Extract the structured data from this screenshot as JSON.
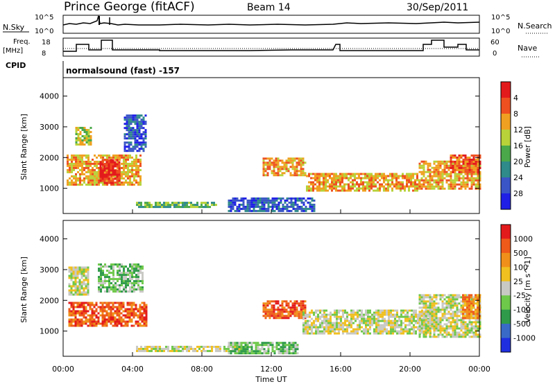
{
  "header": {
    "station": "Prince George (fitACF)",
    "beam": "Beam 14",
    "date": "30/Sep/2011"
  },
  "status_panel": {
    "nsky_label": "N.Sky",
    "nsearch_label": "N.Search",
    "nsky_ticks": [
      "10^5",
      "10^0"
    ],
    "freq_label_line1": "Freq.",
    "freq_label_line2": "[MHz]",
    "freq_ticks": [
      "18",
      "8"
    ],
    "nave_label": "Nave",
    "nave_ticks": [
      "60",
      "0"
    ],
    "cpid_label": "CPID",
    "cpid_text": "normalsound (fast) -157"
  },
  "chart_data": [
    {
      "type": "heatmap",
      "name": "power-panel",
      "ylabel": "Slant Range [km]",
      "yticks": [
        1000,
        2000,
        3000,
        4000
      ],
      "ylim": [
        180,
        4600
      ],
      "xlim": [
        0,
        24
      ],
      "colorbar": {
        "label": "Power [dB]",
        "ticks": [
          "4",
          "8",
          "12",
          "16",
          "20",
          "24",
          "28"
        ],
        "colors": [
          "#1f1fe6",
          "#3a55c6",
          "#2f8a8a",
          "#4aa84a",
          "#b8d23a",
          "#f0a020",
          "#ee5020",
          "#e31a1c"
        ]
      },
      "regions": [
        {
          "t0": 0.2,
          "t1": 4.5,
          "r0": 1100,
          "r1": 2100,
          "level": 5
        },
        {
          "t0": 2.1,
          "t1": 3.2,
          "r0": 1200,
          "r1": 1950,
          "level": 7
        },
        {
          "t0": 0.7,
          "t1": 1.6,
          "r0": 2400,
          "r1": 3000,
          "level": 4
        },
        {
          "t0": 3.5,
          "t1": 4.8,
          "r0": 2200,
          "r1": 3400,
          "level": 1
        },
        {
          "t0": 4.2,
          "t1": 8.8,
          "r0": 380,
          "r1": 560,
          "level": 3
        },
        {
          "t0": 9.5,
          "t1": 14.5,
          "r0": 250,
          "r1": 700,
          "level": 1
        },
        {
          "t0": 11.5,
          "t1": 14.0,
          "r0": 1400,
          "r1": 2000,
          "level": 5
        },
        {
          "t0": 14.0,
          "t1": 20.5,
          "r0": 900,
          "r1": 1500,
          "level": 5
        },
        {
          "t0": 20.5,
          "t1": 24.0,
          "r0": 1000,
          "r1": 1900,
          "level": 5
        },
        {
          "t0": 22.3,
          "t1": 24.0,
          "r0": 1500,
          "r1": 2100,
          "level": 6
        }
      ]
    },
    {
      "type": "heatmap",
      "name": "velocity-panel",
      "ylabel": "Slant Range [km]",
      "yticks": [
        1000,
        2000,
        3000,
        4000
      ],
      "ylim": [
        180,
        4600
      ],
      "xlim": [
        0,
        24
      ],
      "xticks": [
        "00:00",
        "04:00",
        "08:00",
        "12:00",
        "16:00",
        "20:00",
        "00:00"
      ],
      "xlabel": "Time UT",
      "colorbar": {
        "label": "Velocity [m s^-1]",
        "ticks": [
          "1000",
          "500",
          "100",
          "25",
          "-25",
          "-100",
          "-500",
          "-1000"
        ],
        "colors": [
          "#1f2fe0",
          "#3a6ac8",
          "#2f9a4a",
          "#6ec84a",
          "#c8c8c4",
          "#f0c020",
          "#f0901a",
          "#ee5a1a",
          "#e31a1c"
        ]
      },
      "regions": [
        {
          "t0": 0.3,
          "t1": 4.8,
          "r0": 1150,
          "r1": 1950,
          "level": 7
        },
        {
          "t0": 0.3,
          "t1": 1.5,
          "r0": 2200,
          "r1": 3100,
          "level": 4
        },
        {
          "t0": 2.0,
          "t1": 4.6,
          "r0": 2300,
          "r1": 3200,
          "level": 3
        },
        {
          "t0": 4.2,
          "t1": 10.5,
          "r0": 350,
          "r1": 520,
          "level": 4
        },
        {
          "t0": 9.5,
          "t1": 13.5,
          "r0": 300,
          "r1": 650,
          "level": 3
        },
        {
          "t0": 11.5,
          "t1": 14.0,
          "r0": 1400,
          "r1": 2000,
          "level": 7
        },
        {
          "t0": 13.8,
          "t1": 21.2,
          "r0": 900,
          "r1": 1700,
          "level": 4
        },
        {
          "t0": 20.5,
          "t1": 24.0,
          "r0": 800,
          "r1": 2200,
          "level": 4
        },
        {
          "t0": 23.0,
          "t1": 24.0,
          "r0": 1400,
          "r1": 2200,
          "level": 6
        }
      ]
    }
  ]
}
